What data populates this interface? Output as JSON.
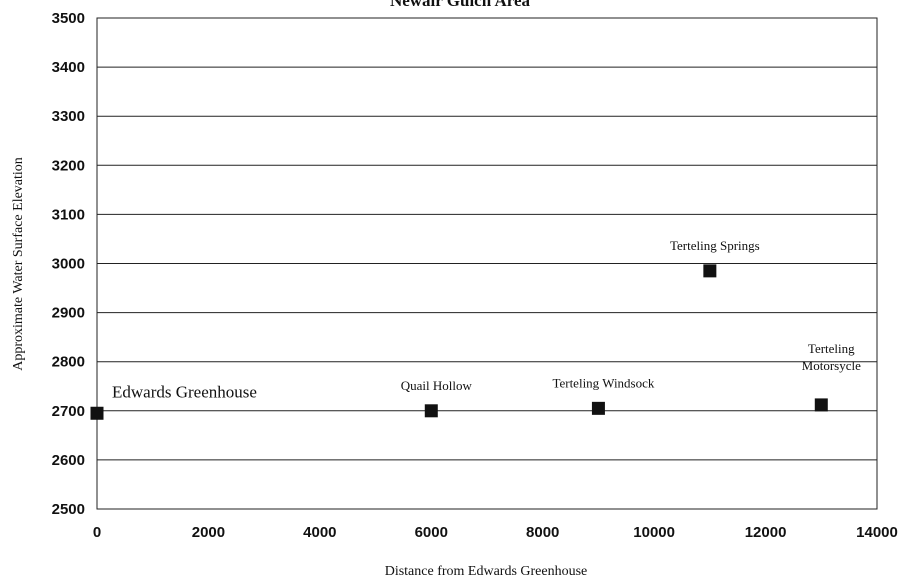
{
  "chart_data": {
    "type": "scatter",
    "title": "Newair Gulch Area",
    "xlabel": "Distance from Edwards Greenhouse",
    "ylabel": "Approximate Water Surface Elevation",
    "xlim": [
      0,
      14000
    ],
    "ylim": [
      2500,
      3500
    ],
    "xticks": [
      0,
      2000,
      4000,
      6000,
      8000,
      10000,
      12000,
      14000
    ],
    "yticks": [
      2500,
      2600,
      2700,
      2800,
      2900,
      3000,
      3100,
      3200,
      3300,
      3400,
      3500
    ],
    "grid": true,
    "legend": "none",
    "points": [
      {
        "label": "Edwards Greenhouse",
        "x": 0,
        "y": 2695
      },
      {
        "label": "Quail Hollow",
        "x": 6000,
        "y": 2700
      },
      {
        "label": "Terteling Windsock",
        "x": 9000,
        "y": 2705
      },
      {
        "label": "Terteling Springs",
        "x": 11000,
        "y": 2985
      },
      {
        "label_lines": [
          "Terteling",
          "Motorsycle"
        ],
        "x": 13000,
        "y": 2712
      }
    ]
  }
}
